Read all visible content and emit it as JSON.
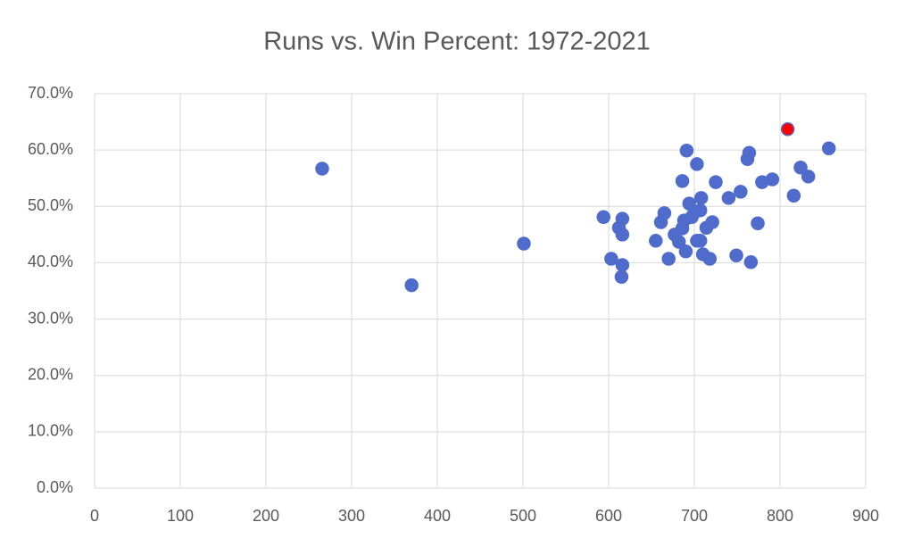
{
  "chart_data": {
    "type": "scatter",
    "title": "Runs vs. Win Percent: 1972-2021",
    "series": [
      {
        "color": "#4f6bcc",
        "x": [
          265.6,
          370,
          501,
          594,
          603,
          616,
          612,
          616,
          616,
          615,
          655,
          661,
          665,
          670,
          677,
          682,
          686,
          691,
          688,
          690,
          686,
          694,
          697,
          700,
          703,
          703,
          707,
          708,
          707,
          710,
          714,
          718,
          721,
          725,
          740,
          749,
          754,
          762,
          764,
          766,
          774,
          779,
          791,
          816,
          824,
          833,
          857
        ],
        "y": [
          56.7,
          36.0,
          43.4,
          48.1,
          40.7,
          47.8,
          46.2,
          45.0,
          39.6,
          37.5,
          43.9,
          47.2,
          48.8,
          40.7,
          45.0,
          43.7,
          54.5,
          59.9,
          47.5,
          42.0,
          46.1,
          50.5,
          48.1,
          48.9,
          57.5,
          43.9,
          43.9,
          51.5,
          49.3,
          41.5,
          46.2,
          40.7,
          47.2,
          54.3,
          51.5,
          41.3,
          52.6,
          58.4,
          59.5,
          40.1,
          47.0,
          54.3,
          54.8,
          51.9,
          56.9,
          55.3,
          60.3
        ]
      },
      {
        "color": "#ff0000",
        "edge": "#4f6bcc",
        "x": [
          809
        ],
        "y": [
          63.7
        ]
      }
    ],
    "xlim": [
      0,
      900
    ],
    "xticks": [
      0,
      100,
      200,
      300,
      400,
      500,
      600,
      700,
      800,
      900
    ],
    "ylim": [
      0,
      70
    ],
    "yticks": [
      {
        "value": 0,
        "label": "0.0%"
      },
      {
        "value": 10,
        "label": "10.0%"
      },
      {
        "value": 20,
        "label": "20.0%"
      },
      {
        "value": 30,
        "label": "30.0%"
      },
      {
        "value": 40,
        "label": "40.0%"
      },
      {
        "value": 50,
        "label": "50.0%"
      },
      {
        "value": 60,
        "label": "60.0%"
      },
      {
        "value": 70,
        "label": "70.0%"
      }
    ],
    "grid": true
  }
}
